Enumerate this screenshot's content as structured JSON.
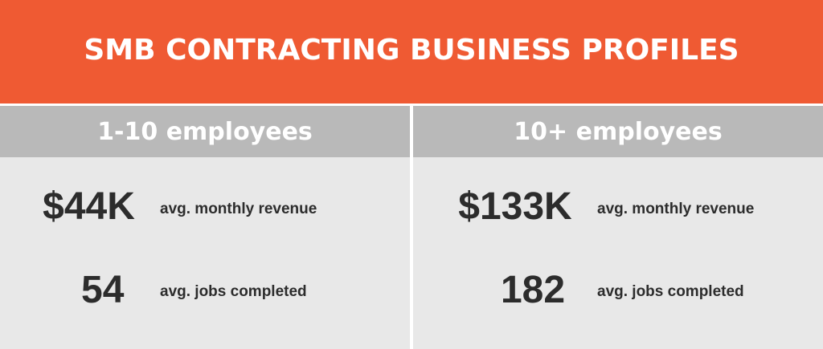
{
  "title": "SMB CONTRACTING BUSINESS PROFILES",
  "colors": {
    "banner": "#ef5a33",
    "header": "#b9b9b9",
    "body": "#e8e8e8",
    "text_dark": "#2c2c2c",
    "text_light": "#ffffff"
  },
  "columns": [
    {
      "header": "1-10 employees",
      "stats": [
        {
          "value": "$44K",
          "label": "avg. monthly revenue"
        },
        {
          "value": "54",
          "label": "avg. jobs completed"
        }
      ]
    },
    {
      "header": "10+ employees",
      "stats": [
        {
          "value": "$133K",
          "label": "avg. monthly revenue"
        },
        {
          "value": "182",
          "label": "avg. jobs completed"
        }
      ]
    }
  ]
}
